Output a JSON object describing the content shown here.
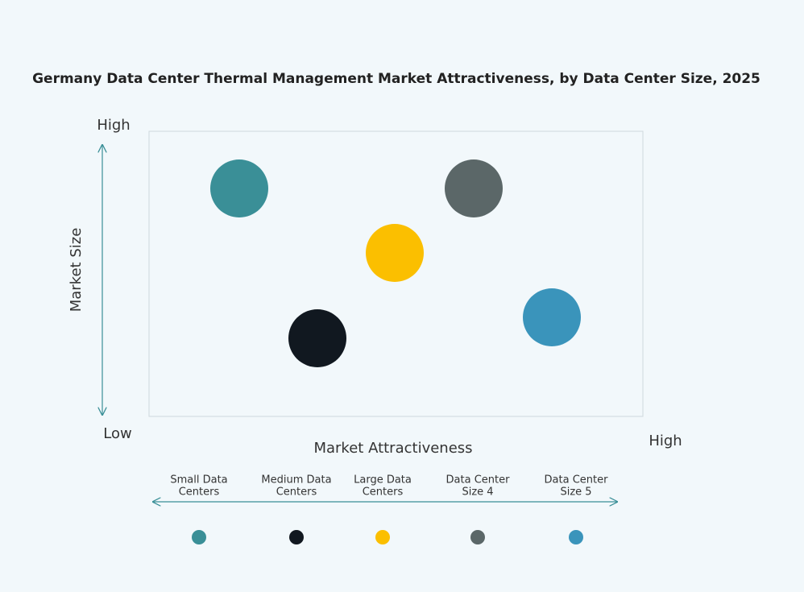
{
  "title": "Germany Data Center Thermal Management Market Attractiveness,  by Data Center Size, 2025",
  "y_axis": {
    "label": "Market Size",
    "high": "High",
    "low": "Low"
  },
  "x_axis": {
    "label": "Market Attractiveness",
    "high": "High"
  },
  "segments": [
    {
      "name": [
        "Small Data",
        "Centers"
      ],
      "color": "#3a8f97"
    },
    {
      "name": [
        "Medium Data",
        "Centers"
      ],
      "color": "#111820"
    },
    {
      "name": [
        "Large Data",
        "Centers"
      ],
      "color": "#fbbf00"
    },
    {
      "name": [
        "Data Center",
        "Size 4"
      ],
      "color": "#5b6768"
    },
    {
      "name": [
        "Data Center",
        "Size 5"
      ],
      "color": "#3a94bb"
    }
  ]
}
